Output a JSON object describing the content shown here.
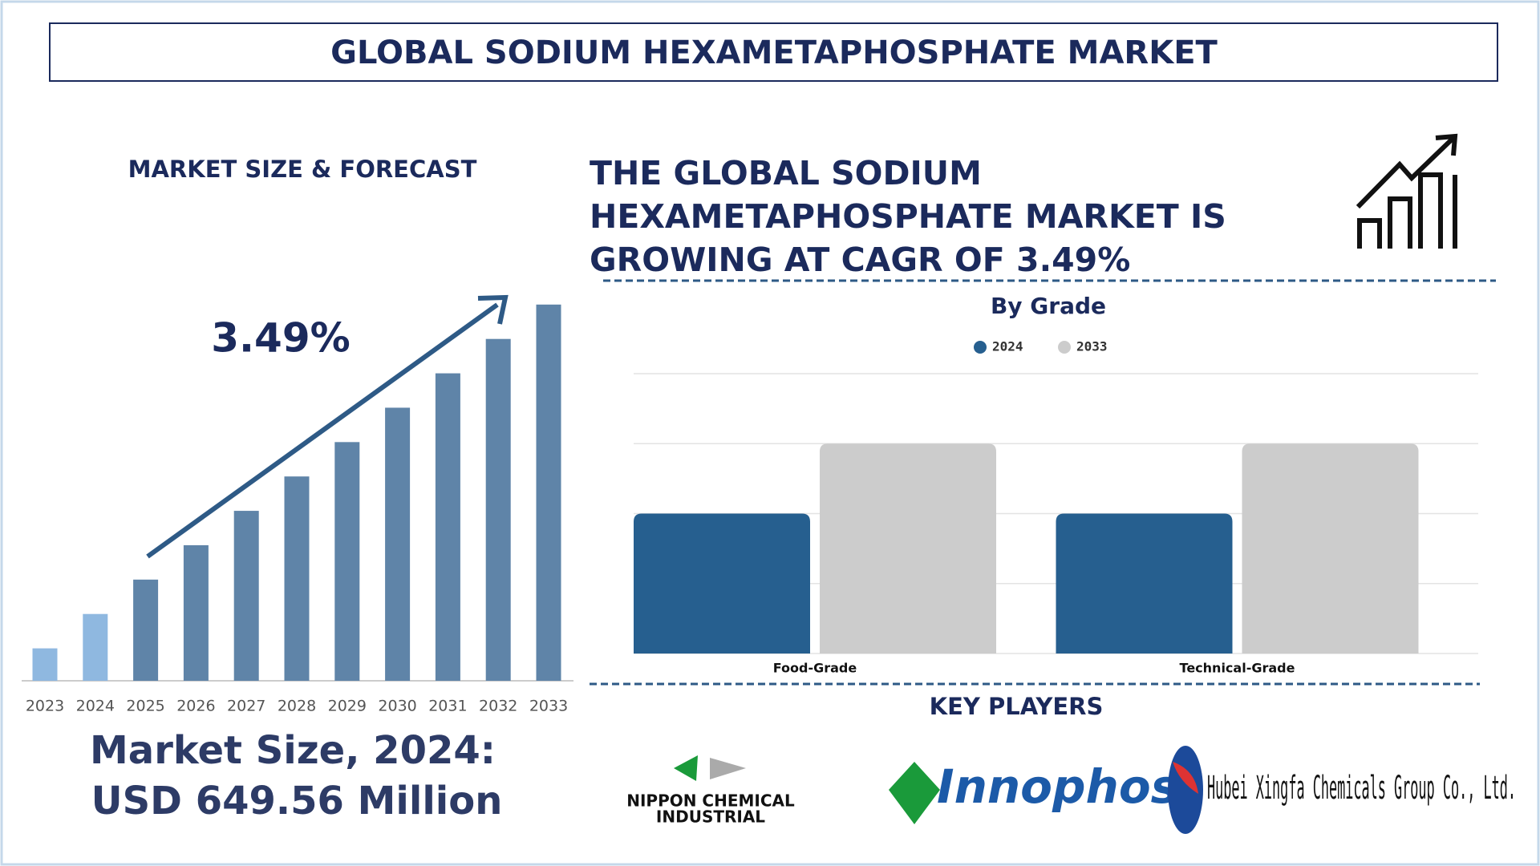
{
  "header": {
    "title": "GLOBAL SODIUM HEXAMETAPHOSPHATE MARKET"
  },
  "left_panel": {
    "heading": "MARKET SIZE & FORECAST",
    "cagr": "3.49%",
    "market_size_lines": [
      "Market Size, 2024:",
      "USD 649.56 Million"
    ]
  },
  "right_panel": {
    "headline_lines": [
      "THE GLOBAL SODIUM",
      "HEXAMETAPHOSPHATE MARKET IS",
      "GROWING AT CAGR OF 3.49%"
    ]
  },
  "key_players": {
    "heading": "KEY PLAYERS",
    "logos": [
      [
        "NIPPON CHEMICAL",
        "INDUSTRIAL"
      ],
      [
        "Innophos"
      ],
      [
        "Hubei Xingfa Chemicals Group Co., Ltd."
      ]
    ]
  },
  "chart_data": [
    {
      "type": "bar",
      "categories": [
        "2023",
        "2024",
        "2025",
        "2026",
        "2027",
        "2028",
        "2029",
        "2030",
        "2031",
        "2032",
        "2033"
      ],
      "values": [
        33,
        68,
        103,
        138,
        173,
        208,
        243,
        278,
        313,
        348,
        383
      ],
      "colors": [
        "#8fb8e0",
        "#8fb8e0",
        "#5f84a8",
        "#5f84a8",
        "#5f84a8",
        "#5f84a8",
        "#5f84a8",
        "#5f84a8",
        "#5f84a8",
        "#5f84a8",
        "#5f84a8"
      ],
      "ylim": [
        0,
        400
      ]
    },
    {
      "type": "grouped-bar",
      "title": "By Grade",
      "categories": [
        "Food-Grade",
        "Technical-Grade"
      ],
      "series": [
        {
          "name": "2024",
          "color": "#265f8f",
          "values": [
            2,
            2
          ]
        },
        {
          "name": "2033",
          "color": "#cccccc",
          "values": [
            3,
            3
          ]
        }
      ],
      "ylim": [
        0,
        4
      ],
      "gridlines": [
        0,
        1,
        2,
        3,
        4
      ]
    }
  ]
}
